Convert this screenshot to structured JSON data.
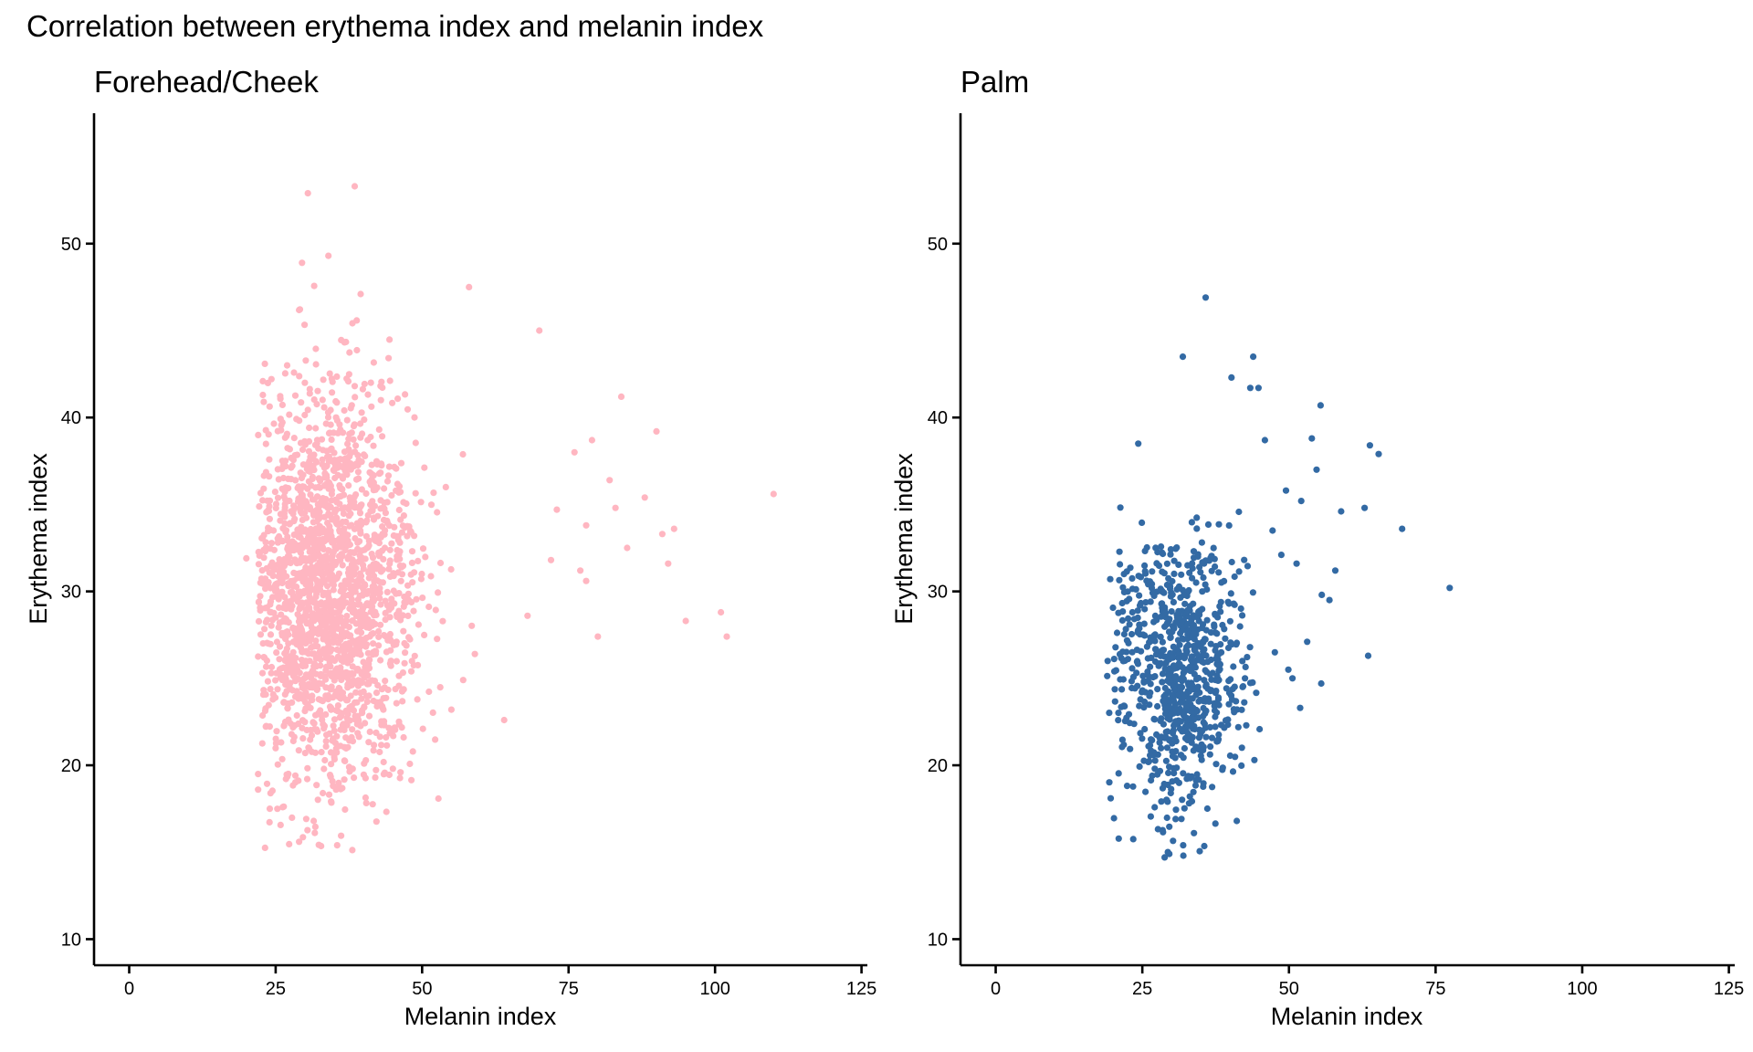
{
  "figure_title": "Correlation between erythema index and melanin index",
  "chart_data": [
    {
      "type": "scatter",
      "title": "Forehead/Cheek",
      "xlabel": "Melanin index",
      "ylabel": "Erythema index",
      "xlim": [
        -6,
        126
      ],
      "ylim": [
        8.5,
        57.5
      ],
      "xticks": [
        0,
        25,
        50,
        75,
        100,
        125
      ],
      "yticks": [
        10,
        20,
        30,
        40,
        50
      ],
      "color": "#FFB6C1",
      "grid": false,
      "legend": "none",
      "n_points_approx": 2000,
      "cloud": {
        "x_mean": 34,
        "x_sd": 7.5,
        "x_min": 22,
        "x_max": 62,
        "y_mean": 30,
        "y_sd": 5.6,
        "y_min": 15,
        "y_max": 50
      },
      "outliers": [
        {
          "x": 110,
          "y": 35.6
        },
        {
          "x": 102,
          "y": 27.4
        },
        {
          "x": 101,
          "y": 28.8
        },
        {
          "x": 95,
          "y": 28.3
        },
        {
          "x": 93,
          "y": 33.6
        },
        {
          "x": 92,
          "y": 31.6
        },
        {
          "x": 91,
          "y": 33.3
        },
        {
          "x": 90,
          "y": 39.2
        },
        {
          "x": 88,
          "y": 35.4
        },
        {
          "x": 85,
          "y": 32.5
        },
        {
          "x": 84,
          "y": 41.2
        },
        {
          "x": 83,
          "y": 34.8
        },
        {
          "x": 82,
          "y": 36.4
        },
        {
          "x": 80,
          "y": 27.4
        },
        {
          "x": 79,
          "y": 38.7
        },
        {
          "x": 78,
          "y": 33.8
        },
        {
          "x": 78,
          "y": 30.6
        },
        {
          "x": 77,
          "y": 31.2
        },
        {
          "x": 76,
          "y": 38.0
        },
        {
          "x": 73,
          "y": 34.7
        },
        {
          "x": 72,
          "y": 31.8
        },
        {
          "x": 70,
          "y": 45.0
        },
        {
          "x": 68,
          "y": 28.6
        },
        {
          "x": 64,
          "y": 22.6
        },
        {
          "x": 58,
          "y": 47.5
        },
        {
          "x": 38.5,
          "y": 53.3
        },
        {
          "x": 30.5,
          "y": 52.9
        },
        {
          "x": 34,
          "y": 49.3
        },
        {
          "x": 29.5,
          "y": 48.9
        },
        {
          "x": 39.5,
          "y": 47.1
        },
        {
          "x": 35.5,
          "y": 15.4
        },
        {
          "x": 29,
          "y": 15.6
        },
        {
          "x": 31.5,
          "y": 16.8
        },
        {
          "x": 20,
          "y": 31.9
        },
        {
          "x": 22,
          "y": 19.5
        },
        {
          "x": 22,
          "y": 18.6
        },
        {
          "x": 24,
          "y": 17.5
        },
        {
          "x": 55,
          "y": 23.2
        },
        {
          "x": 57,
          "y": 24.9
        },
        {
          "x": 59,
          "y": 26.4
        },
        {
          "x": 45,
          "y": 19.8
        },
        {
          "x": 42,
          "y": 19.3
        }
      ]
    },
    {
      "type": "scatter",
      "title": "Palm",
      "xlabel": "Melanin index",
      "ylabel": "Erythema index",
      "xlim": [
        -6,
        126
      ],
      "ylim": [
        8.5,
        57.5
      ],
      "xticks": [
        0,
        25,
        50,
        75,
        100,
        125
      ],
      "yticks": [
        10,
        20,
        30,
        40,
        50
      ],
      "color": "#336AA4",
      "grid": false,
      "legend": "none",
      "n_points_approx": 800,
      "cloud": {
        "x_mean": 31,
        "x_sd": 5.5,
        "x_min": 19,
        "x_max": 45,
        "y_mean": 25.5,
        "y_sd": 4.0,
        "y_min": 15,
        "y_max": 35
      },
      "outliers": [
        {
          "x": 35.8,
          "y": 46.9
        },
        {
          "x": 31.9,
          "y": 43.5
        },
        {
          "x": 43.9,
          "y": 43.5
        },
        {
          "x": 40.2,
          "y": 42.3
        },
        {
          "x": 43.4,
          "y": 41.7
        },
        {
          "x": 44.8,
          "y": 41.7
        },
        {
          "x": 55.4,
          "y": 40.7
        },
        {
          "x": 63.8,
          "y": 38.4
        },
        {
          "x": 65.3,
          "y": 37.9
        },
        {
          "x": 53.9,
          "y": 38.8
        },
        {
          "x": 45.9,
          "y": 38.7
        },
        {
          "x": 49.5,
          "y": 35.8
        },
        {
          "x": 52.1,
          "y": 35.2
        },
        {
          "x": 54.7,
          "y": 37.0
        },
        {
          "x": 58.9,
          "y": 34.6
        },
        {
          "x": 62.9,
          "y": 34.8
        },
        {
          "x": 69.3,
          "y": 33.6
        },
        {
          "x": 77.4,
          "y": 30.2
        },
        {
          "x": 57.9,
          "y": 31.2
        },
        {
          "x": 56.9,
          "y": 29.5
        },
        {
          "x": 55.6,
          "y": 29.8
        },
        {
          "x": 63.5,
          "y": 26.3
        },
        {
          "x": 55.5,
          "y": 24.7
        },
        {
          "x": 51.9,
          "y": 23.3
        },
        {
          "x": 53.1,
          "y": 27.1
        },
        {
          "x": 47.2,
          "y": 33.5
        },
        {
          "x": 48.7,
          "y": 32.1
        },
        {
          "x": 51.3,
          "y": 31.6
        },
        {
          "x": 24.3,
          "y": 38.5
        },
        {
          "x": 19.1,
          "y": 26.0
        },
        {
          "x": 19.6,
          "y": 18.1
        },
        {
          "x": 28.8,
          "y": 14.7
        },
        {
          "x": 32.0,
          "y": 14.8
        },
        {
          "x": 29.6,
          "y": 14.9
        },
        {
          "x": 33.8,
          "y": 16.1
        },
        {
          "x": 41.1,
          "y": 16.8
        },
        {
          "x": 47.6,
          "y": 26.5
        },
        {
          "x": 49.9,
          "y": 25.5
        },
        {
          "x": 50.6,
          "y": 25.0
        },
        {
          "x": 44.1,
          "y": 20.3
        }
      ]
    }
  ]
}
